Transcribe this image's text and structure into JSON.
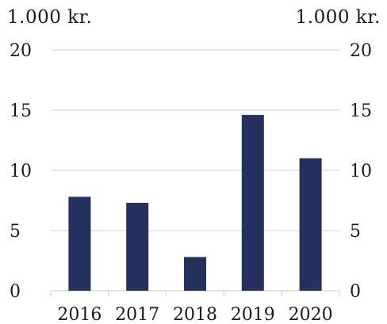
{
  "chart_data": {
    "type": "bar",
    "left_axis_unit": "1.000 kr.",
    "right_axis_unit": "1.000 kr.",
    "categories": [
      "2016",
      "2017",
      "2018",
      "2019",
      "2020"
    ],
    "values": [
      7.8,
      7.3,
      2.8,
      14.6,
      11.0
    ],
    "ylim": [
      0,
      20
    ],
    "yticks": [
      "0",
      "5",
      "10",
      "15",
      "20"
    ],
    "ytick_values": [
      0,
      5,
      10,
      15,
      20
    ],
    "grid": true,
    "bar_color": "#24305e",
    "grid_color": "#d9d9d9"
  }
}
